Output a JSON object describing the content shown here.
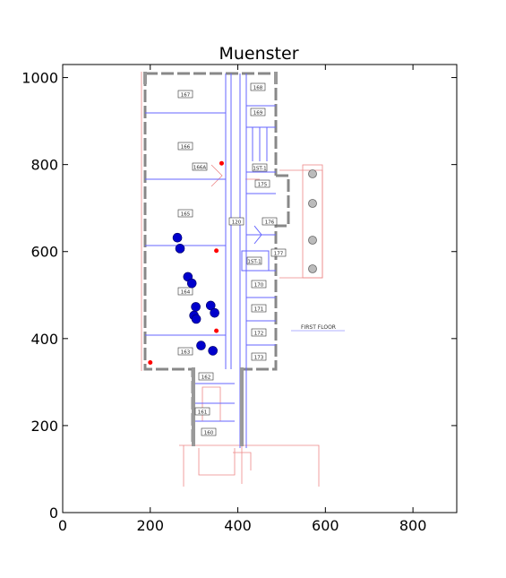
{
  "chart_data": {
    "type": "scatter",
    "title": "Muenster",
    "xlabel": "",
    "ylabel": "",
    "xlim": [
      0,
      900
    ],
    "ylim": [
      0,
      1030
    ],
    "x_ticks": [
      "0",
      "200",
      "400",
      "600",
      "800"
    ],
    "x_tick_values": [
      0,
      200,
      400,
      600,
      800
    ],
    "y_ticks": [
      "0",
      "200",
      "400",
      "600",
      "800",
      "1000"
    ],
    "y_tick_values": [
      0,
      200,
      400,
      600,
      800,
      1000
    ],
    "grid": false,
    "colors": {
      "blue_points": "#0000cc",
      "red_points": "#ff0000",
      "walls": "#888888",
      "plan_lines": "#6666ff",
      "plan_red": "#ee8888"
    },
    "series": [
      {
        "color": "blue",
        "points": [
          {
            "x": 262,
            "y": 632
          },
          {
            "x": 268,
            "y": 607
          },
          {
            "x": 286,
            "y": 542
          },
          {
            "x": 295,
            "y": 527
          },
          {
            "x": 304,
            "y": 473
          },
          {
            "x": 300,
            "y": 453
          },
          {
            "x": 305,
            "y": 445
          },
          {
            "x": 338,
            "y": 476
          },
          {
            "x": 347,
            "y": 459
          },
          {
            "x": 316,
            "y": 384
          },
          {
            "x": 343,
            "y": 372
          }
        ]
      },
      {
        "color": "red",
        "points": [
          {
            "x": 363,
            "y": 803
          },
          {
            "x": 351,
            "y": 602
          },
          {
            "x": 351,
            "y": 418
          },
          {
            "x": 200,
            "y": 345
          }
        ]
      }
    ],
    "floor_plan": {
      "label": "FIRST FLOOR",
      "rooms": [
        "167",
        "166",
        "166A",
        "165",
        "164",
        "163",
        "162",
        "161",
        "160",
        "168",
        "169",
        "1ST-1",
        "175",
        "120",
        "176",
        "177",
        "1ST-1",
        "170",
        "171",
        "172",
        "173"
      ]
    }
  }
}
